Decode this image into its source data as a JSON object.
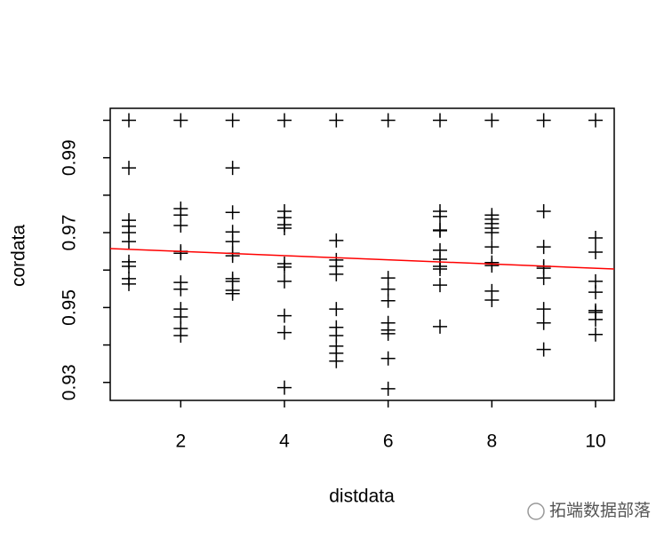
{
  "chart_data": {
    "type": "scatter",
    "x_label": "distdata",
    "y_label": "cordata",
    "x": [
      1,
      1,
      1,
      1,
      1,
      1,
      1,
      1,
      1,
      1,
      2,
      2,
      2,
      2,
      2,
      2,
      2,
      2,
      2,
      2,
      2,
      2,
      3,
      3,
      3,
      3,
      3,
      3,
      3,
      3,
      3,
      3,
      3,
      4,
      4,
      4,
      4,
      4,
      4,
      4,
      4,
      4,
      4,
      4,
      5,
      5,
      5,
      5,
      5,
      5,
      5,
      5,
      5,
      5,
      5,
      6,
      6,
      6,
      6,
      6,
      6,
      6,
      6,
      6,
      7,
      7,
      7,
      7,
      7,
      7,
      7,
      7,
      7,
      7,
      7,
      8,
      8,
      8,
      8,
      8,
      8,
      8,
      8,
      8,
      8,
      8,
      9,
      9,
      9,
      9,
      9,
      9,
      9,
      9,
      9,
      10,
      10,
      10,
      10,
      10,
      10,
      10,
      10,
      10
    ],
    "values": [
      1,
      0.9873,
      0.9733,
      0.9717,
      0.97,
      0.9676,
      0.9622,
      0.961,
      0.9577,
      0.9563,
      1,
      0.9764,
      0.9747,
      0.9719,
      0.965,
      0.9645,
      0.9567,
      0.9549,
      0.9496,
      0.9475,
      0.9444,
      0.9425,
      1,
      0.9873,
      0.9754,
      0.9702,
      0.9676,
      0.9645,
      0.9638,
      0.9577,
      0.957,
      0.9546,
      0.9537,
      1,
      0.9757,
      0.974,
      0.9721,
      0.9712,
      0.9617,
      0.9608,
      0.957,
      0.9478,
      0.9433,
      0.9286,
      1,
      0.9679,
      0.9627,
      0.961,
      0.9589,
      0.9496,
      0.9447,
      0.9425,
      0.9397,
      0.9378,
      0.9357,
      1,
      0.9579,
      0.9549,
      0.9518,
      0.9459,
      0.944,
      0.943,
      0.9364,
      0.9283,
      1,
      0.9757,
      0.9743,
      0.9707,
      0.9705,
      0.9653,
      0.9629,
      0.961,
      0.9603,
      0.956,
      0.9449,
      1,
      0.9747,
      0.9736,
      0.9724,
      0.9712,
      0.97,
      0.9662,
      0.962,
      0.9612,
      0.9544,
      0.952,
      1,
      0.9757,
      0.9662,
      0.961,
      0.9605,
      0.9579,
      0.9496,
      0.9459,
      0.9388,
      1,
      0.9686,
      0.9648,
      0.957,
      0.9541,
      0.9492,
      0.9487,
      0.9468,
      0.9428
    ],
    "color": "#000000",
    "fit_line": {
      "intercept": 0.9661,
      "slope": -0.00056,
      "color": "#ff0000"
    },
    "xlim": [
      0.64,
      10.36
    ],
    "xticks": [
      2,
      4,
      6,
      8,
      10
    ],
    "ylim": [
      0.9252,
      1.0032
    ],
    "yticks": [
      0.93,
      {
        "value": 0.94,
        "label": null
      },
      0.95,
      {
        "value": 0.96,
        "label": null
      },
      0.97,
      {
        "value": 0.98,
        "label": null
      },
      0.99,
      {
        "value": 1.0,
        "label": null
      }
    ]
  },
  "watermark": "拓端数据部落"
}
